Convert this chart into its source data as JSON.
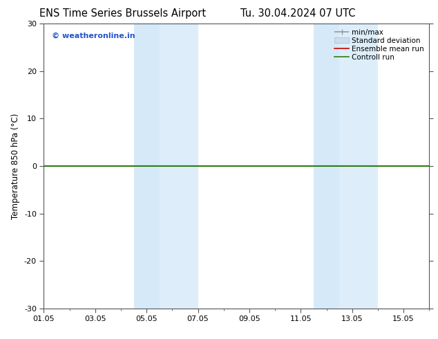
{
  "title_left": "ENS Time Series Brussels Airport",
  "title_right": "Tu. 30.04.2024 07 UTC",
  "ylabel": "Temperature 850 hPa (°C)",
  "ylim": [
    -30,
    30
  ],
  "yticks": [
    -30,
    -20,
    -10,
    0,
    10,
    20,
    30
  ],
  "xtick_labels": [
    "01.05",
    "03.05",
    "05.05",
    "07.05",
    "09.05",
    "11.05",
    "13.05",
    "15.05"
  ],
  "xtick_positions": [
    0,
    2,
    4,
    6,
    8,
    10,
    12,
    14
  ],
  "xlim": [
    0,
    15
  ],
  "shaded_bands": [
    {
      "xstart": 3.5,
      "xend": 4.5,
      "color": "#d6e9f8"
    },
    {
      "xstart": 4.5,
      "xend": 6.0,
      "color": "#ddeefa"
    },
    {
      "xstart": 10.5,
      "xend": 11.5,
      "color": "#d6e9f8"
    },
    {
      "xstart": 11.5,
      "xend": 13.0,
      "color": "#ddeefa"
    }
  ],
  "hline_y": 0,
  "hline_color": "#2e7d0e",
  "hline_lw": 1.5,
  "watermark": "© weatheronline.in",
  "watermark_color": "#2255cc",
  "legend_items": [
    {
      "label": "min/max",
      "color": "#999999",
      "lw": 1.2
    },
    {
      "label": "Standard deviation",
      "color": "#ccddee",
      "lw": 8
    },
    {
      "label": "Ensemble mean run",
      "color": "#cc0000",
      "lw": 1.2
    },
    {
      "label": "Controll run",
      "color": "#2e7d0e",
      "lw": 1.2
    }
  ],
  "bg_color": "#ffffff",
  "plot_bg_color": "#ffffff",
  "spine_color": "#555555",
  "title_fontsize": 10.5,
  "axis_label_fontsize": 8.5,
  "tick_fontsize": 8,
  "watermark_fontsize": 8,
  "legend_fontsize": 7.5
}
